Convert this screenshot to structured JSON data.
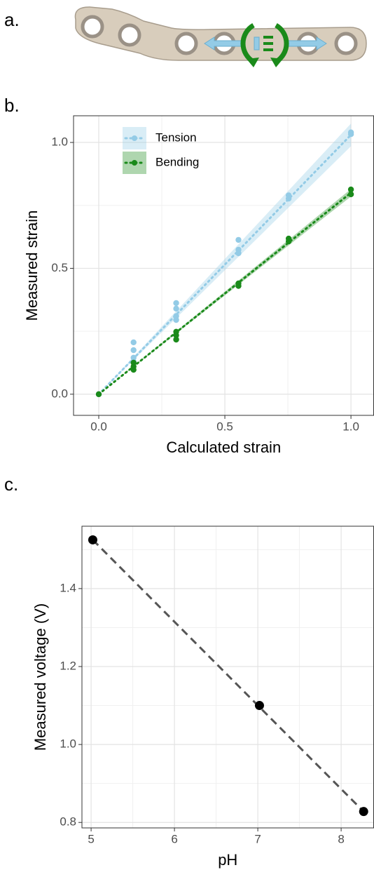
{
  "panel_labels": [
    "a.",
    "b.",
    "c."
  ],
  "chart_data": [
    {
      "type": "scatter",
      "xlabel": "Calculated strain",
      "ylabel": "Measured strain",
      "xlim": [
        -0.1,
        1.09
      ],
      "ylim": [
        -0.084,
        1.106
      ],
      "xticks": [
        {
          "value": 0,
          "label": "0.0"
        },
        {
          "value": 0.5,
          "label": "0.5"
        },
        {
          "value": 1,
          "label": "1.0"
        }
      ],
      "yticks": [
        {
          "value": 0,
          "label": "0.0"
        },
        {
          "value": 0.5,
          "label": "0.5"
        },
        {
          "value": 1,
          "label": "1.0"
        }
      ],
      "minor_xticks": [
        0.25,
        0.75
      ],
      "minor_yticks": [
        0.25,
        0.75
      ],
      "grid": true,
      "legend": "top-left",
      "series": [
        {
          "name": "Tension",
          "color": "#93cbe6",
          "line_style": "dotted",
          "x": [
            0,
            0.138,
            0.138,
            0.138,
            0.138,
            0.307,
            0.307,
            0.307,
            0.307,
            0.554,
            0.554,
            0.554,
            0.753,
            0.753,
            1.0,
            1.0
          ],
          "values": [
            0,
            0.206,
            0.175,
            0.145,
            0.13,
            0.362,
            0.34,
            0.31,
            0.295,
            0.613,
            0.574,
            0.56,
            0.79,
            0.777,
            1.04,
            1.033
          ],
          "fit_x": [
            0,
            1
          ],
          "fit_values": [
            0,
            1.03
          ],
          "fit_lower": [
            0,
            0.985
          ],
          "fit_upper": [
            0,
            1.075
          ]
        },
        {
          "name": "Bending",
          "color": "#1a8a1a",
          "line_style": "dotted",
          "x": [
            0,
            0.138,
            0.138,
            0.138,
            0.307,
            0.307,
            0.307,
            0.554,
            0.554,
            0.753,
            0.753,
            1.0,
            1.0
          ],
          "values": [
            0,
            0.125,
            0.11,
            0.097,
            0.248,
            0.234,
            0.217,
            0.44,
            0.43,
            0.618,
            0.607,
            0.813,
            0.794
          ],
          "fit_x": [
            0,
            1
          ],
          "fit_values": [
            0,
            0.8
          ],
          "fit_lower": [
            0,
            0.785
          ],
          "fit_upper": [
            0,
            0.815
          ]
        }
      ]
    },
    {
      "type": "scatter",
      "xlabel": "pH",
      "ylabel": "Measured voltage (V)",
      "xlim": [
        4.89,
        8.39
      ],
      "ylim": [
        0.786,
        1.56
      ],
      "xticks": [
        5,
        6,
        7,
        8
      ],
      "yticks": [
        {
          "value": 0.8,
          "label": "0.8"
        },
        {
          "value": 1.0,
          "label": "1.0"
        },
        {
          "value": 1.2,
          "label": "1.2"
        },
        {
          "value": 1.4,
          "label": "1.4"
        }
      ],
      "minor_xticks": [
        5.5,
        6.5,
        7.5
      ],
      "minor_yticks": [
        0.9,
        1.1,
        1.3,
        1.5
      ],
      "grid": true,
      "series": [
        {
          "color": "#000000",
          "fit_color": "#555555",
          "line_style": "dashed",
          "x": [
            5.02,
            7.02,
            8.27
          ],
          "values": [
            1.525,
            1.1,
            0.828
          ],
          "fit_x": [
            5.02,
            8.27
          ],
          "fit_values": [
            1.525,
            0.828
          ]
        }
      ]
    }
  ]
}
